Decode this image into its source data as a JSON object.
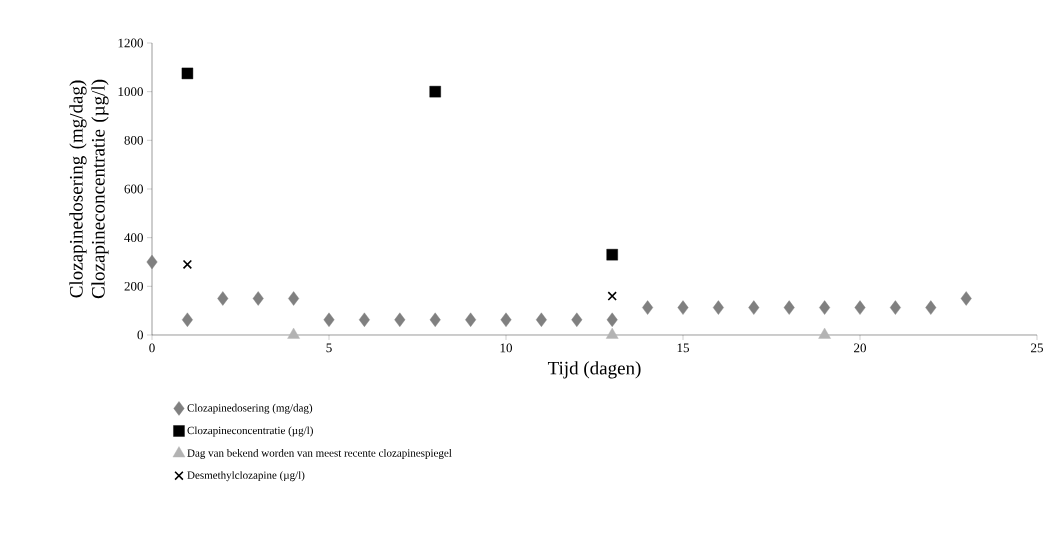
{
  "chart_data": {
    "type": "scatter",
    "xlabel": "Tijd (dagen)",
    "ylabel": "Clozapinedosering (mg/dag) Clozapineconcentratie (µg/l)",
    "xlim": [
      0,
      25
    ],
    "xticks": [
      0,
      5,
      10,
      15,
      20,
      25
    ],
    "ylim": [
      0,
      1200
    ],
    "yticks": [
      0,
      200,
      400,
      600,
      800,
      1000,
      1200
    ],
    "grid": false,
    "legend": "bottom",
    "series": [
      {
        "name": "Clozapinedosering (mg/dag)",
        "color": "#808080",
        "marker": "diamond",
        "x": [
          0,
          1,
          2,
          3,
          4,
          5,
          6,
          7,
          8,
          9,
          10,
          11,
          12,
          13,
          14,
          15,
          16,
          17,
          18,
          19,
          20,
          21,
          22,
          23
        ],
        "values": [
          300,
          62.5,
          150,
          150,
          150,
          62.5,
          62.5,
          62.5,
          62.5,
          62.5,
          62.5,
          62.5,
          62.5,
          62.5,
          112.5,
          112.5,
          112.5,
          112.5,
          112.5,
          112.5,
          112.5,
          112.5,
          112.5,
          150
        ]
      },
      {
        "name": "Clozapineconcentratie (µg/l)",
        "color": "#000000",
        "marker": "square",
        "x": [
          1,
          8,
          13
        ],
        "values": [
          1075,
          1000,
          330
        ]
      },
      {
        "name": "Dag van bekend worden van meest recente clozapinespiegel",
        "color": "#b3b3b3",
        "marker": "triangle",
        "x": [
          4,
          13,
          19
        ],
        "values": [
          0,
          0,
          0
        ]
      },
      {
        "name": "Desmethylclozapine (µg/l)",
        "color": "#000000",
        "marker": "cross",
        "x": [
          1,
          13
        ],
        "values": [
          290,
          160
        ]
      }
    ]
  }
}
